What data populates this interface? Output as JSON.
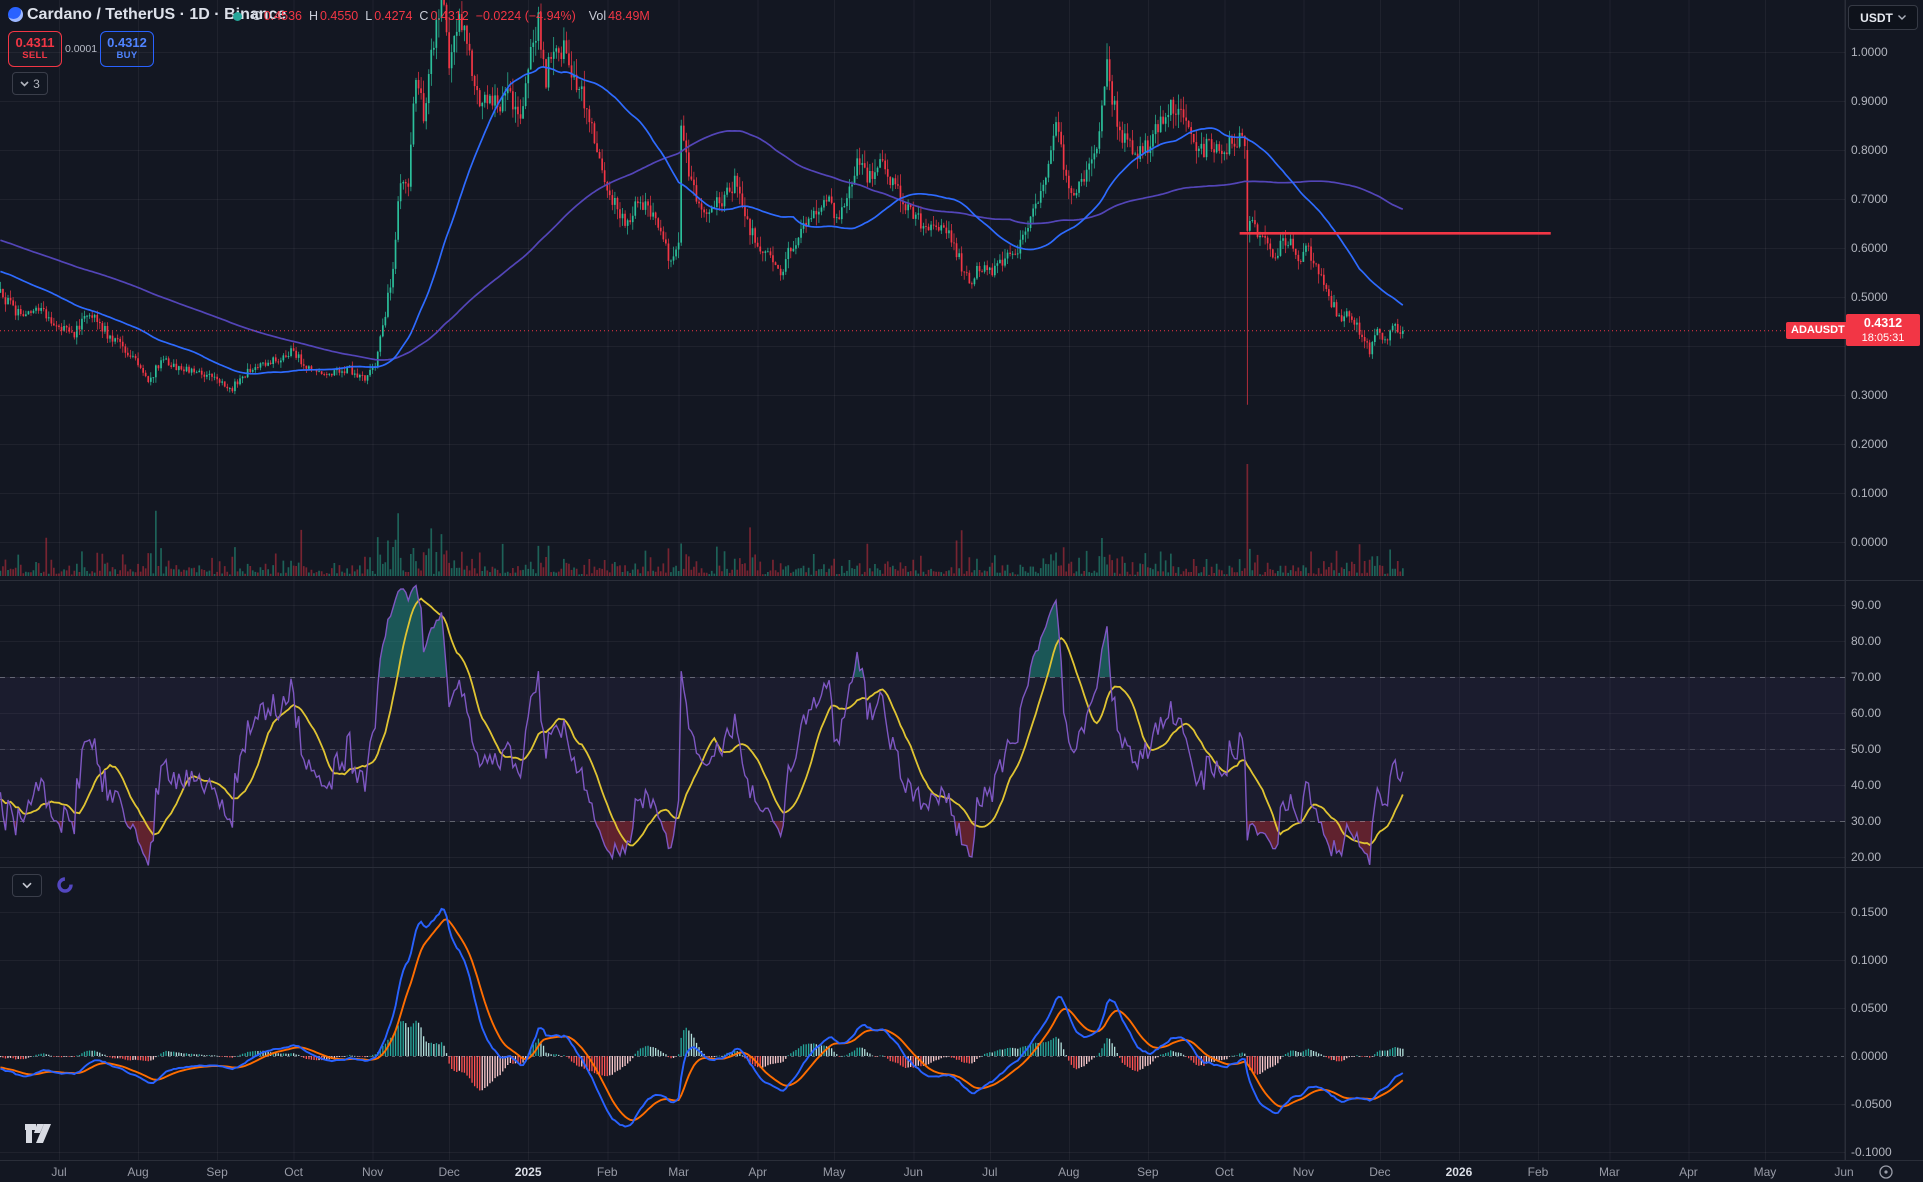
{
  "header": {
    "title": "Cardano / TetherUS · 1D · Binance",
    "status_dot": "market-status-dot",
    "ohlc": [
      {
        "k": "O",
        "v": "0.4536",
        "name": "open"
      },
      {
        "k": "H",
        "v": "0.4550",
        "name": "high"
      },
      {
        "k": "L",
        "v": "0.4274",
        "name": "low"
      },
      {
        "k": "C",
        "v": "0.4312",
        "name": "close"
      }
    ],
    "change": "−0.0224 (−4.94%)",
    "vol_label": "Vol",
    "vol_value": "48.49M"
  },
  "trade_panel": {
    "sell_price": "0.4311",
    "sell_label": "SELL",
    "spread": "0.0001",
    "buy_price": "0.4312",
    "buy_label": "BUY"
  },
  "object_tree_toggle": {
    "count": "3",
    "icon": "chevron-down-icon"
  },
  "macd_pane": {
    "collapse_icon": "chevron-down-icon",
    "loader_icon": "indicator-loader-icon"
  },
  "price_scale": {
    "currency_button": {
      "label": "USDT",
      "icon": "chevron-down-icon"
    },
    "ticks": [
      "1.0000",
      "0.9000",
      "0.8000",
      "0.7000",
      "0.6000",
      "0.5000",
      "0.3000",
      "0.2000",
      "0.1000",
      "0.0000"
    ],
    "last_price_tag": {
      "symbol": "ADAUSDT",
      "price": "0.4312",
      "countdown": "18:05:31"
    }
  },
  "rsi_scale_ticks": [
    "90.00",
    "80.00",
    "70.00",
    "60.00",
    "50.00",
    "40.00",
    "30.00",
    "20.00"
  ],
  "macd_scale_ticks": [
    "0.1500",
    "0.1000",
    "0.0500",
    "0.0000",
    "-0.0500",
    "-0.1000"
  ],
  "time_scale": {
    "labels": [
      "Jul",
      "Aug",
      "Sep",
      "Oct",
      "Nov",
      "Dec",
      "2025",
      "Feb",
      "Mar",
      "Apr",
      "May",
      "Jun",
      "Jul",
      "Aug",
      "Sep",
      "Oct",
      "Nov",
      "Dec",
      "2026",
      "Feb",
      "Mar",
      "Apr",
      "May",
      "Jun"
    ],
    "major_flags": [
      0,
      0,
      0,
      0,
      0,
      0,
      1,
      0,
      0,
      0,
      0,
      0,
      0,
      0,
      0,
      0,
      0,
      0,
      1,
      0,
      0,
      0,
      0,
      0
    ],
    "settings_icon": "timezone-settings-icon"
  },
  "watermark_logo": "tradingview-logo",
  "colors": {
    "bg": "#131722",
    "grid": "rgba(255,255,255,0.05)",
    "text": "#b2b5be",
    "text_bright": "#dbdee6",
    "up": "#2bbf9b",
    "down": "#f23645",
    "vol_up": "rgba(43,191,155,0.45)",
    "vol_down": "rgba(242,54,69,0.45)",
    "sma_fast": "#2e6bff",
    "sma_slow": "#5345b8",
    "rsi_line": "#7e57c2",
    "rsi_ma": "#e0c432",
    "rsi_band": "rgba(126,87,194,0.08)",
    "rsi_ob_fill": "rgba(38,166,154,0.45)",
    "rsi_os_fill": "rgba(242,54,69,0.35)",
    "macd_line": "#2962ff",
    "signal_line": "#ff6d00",
    "hist_up": "#26a69a",
    "hist_up_fade": "#b2dfdb",
    "hist_down": "#ff5252",
    "hist_down_fade": "#fccbcd",
    "separator": "#2a2e39",
    "dashed_level": "rgba(178,181,190,0.45)",
    "buy_accent": "#2962ff",
    "sell_accent": "#f23645"
  },
  "chart_data": {
    "type": "candlestick",
    "symbol": "ADAUSDT",
    "timeframe": "1D",
    "exchange": "Binance",
    "price_axis": {
      "visible_min": 0.0,
      "visible_max": 1.106,
      "tick_step": 0.1
    },
    "time_axis": {
      "first_month_label": "Jul",
      "first_month_year": 2024,
      "months_visible": 24
    },
    "last_close": 0.4312,
    "price_keypoints": [
      [
        -160,
        0.74
      ],
      [
        -130,
        0.68
      ],
      [
        -100,
        0.63
      ],
      [
        -70,
        0.585
      ],
      [
        -45,
        0.555
      ],
      [
        -30,
        0.53
      ],
      [
        -23,
        0.505
      ],
      [
        -16,
        0.465
      ],
      [
        -8,
        0.475
      ],
      [
        0,
        0.44
      ],
      [
        6,
        0.425
      ],
      [
        12,
        0.465
      ],
      [
        20,
        0.42
      ],
      [
        28,
        0.385
      ],
      [
        35,
        0.325
      ],
      [
        40,
        0.37
      ],
      [
        48,
        0.355
      ],
      [
        56,
        0.345
      ],
      [
        62,
        0.33
      ],
      [
        68,
        0.315
      ],
      [
        75,
        0.355
      ],
      [
        84,
        0.37
      ],
      [
        92,
        0.39
      ],
      [
        98,
        0.35
      ],
      [
        106,
        0.34
      ],
      [
        113,
        0.355
      ],
      [
        120,
        0.335
      ],
      [
        124,
        0.36
      ],
      [
        128,
        0.47
      ],
      [
        131,
        0.56
      ],
      [
        134,
        0.74
      ],
      [
        137,
        0.72
      ],
      [
        140,
        0.95
      ],
      [
        143,
        0.88
      ],
      [
        147,
        1.02
      ],
      [
        150,
        1.12
      ],
      [
        153,
        0.99
      ],
      [
        157,
        1.09
      ],
      [
        161,
        1.0
      ],
      [
        165,
        0.89
      ],
      [
        169,
        0.92
      ],
      [
        173,
        0.88
      ],
      [
        177,
        0.92
      ],
      [
        181,
        0.86
      ],
      [
        185,
        0.99
      ],
      [
        188,
        1.06
      ],
      [
        191,
        0.95
      ],
      [
        195,
        1.03
      ],
      [
        199,
        0.99
      ],
      [
        203,
        0.94
      ],
      [
        208,
        0.86
      ],
      [
        212,
        0.77
      ],
      [
        217,
        0.7
      ],
      [
        222,
        0.645
      ],
      [
        227,
        0.7
      ],
      [
        232,
        0.67
      ],
      [
        236,
        0.63
      ],
      [
        240,
        0.565
      ],
      [
        243,
        0.6
      ],
      [
        244,
        0.85
      ],
      [
        247,
        0.74
      ],
      [
        251,
        0.695
      ],
      [
        256,
        0.675
      ],
      [
        260,
        0.7
      ],
      [
        265,
        0.73
      ],
      [
        269,
        0.66
      ],
      [
        274,
        0.615
      ],
      [
        279,
        0.575
      ],
      [
        283,
        0.545
      ],
      [
        287,
        0.6
      ],
      [
        292,
        0.645
      ],
      [
        297,
        0.68
      ],
      [
        302,
        0.7
      ],
      [
        306,
        0.655
      ],
      [
        310,
        0.72
      ],
      [
        313,
        0.785
      ],
      [
        317,
        0.745
      ],
      [
        321,
        0.77
      ],
      [
        326,
        0.745
      ],
      [
        331,
        0.7
      ],
      [
        336,
        0.665
      ],
      [
        341,
        0.635
      ],
      [
        346,
        0.655
      ],
      [
        350,
        0.61
      ],
      [
        354,
        0.565
      ],
      [
        357,
        0.525
      ],
      [
        361,
        0.56
      ],
      [
        366,
        0.55
      ],
      [
        371,
        0.575
      ],
      [
        376,
        0.59
      ],
      [
        381,
        0.65
      ],
      [
        385,
        0.71
      ],
      [
        389,
        0.8
      ],
      [
        391,
        0.86
      ],
      [
        394,
        0.76
      ],
      [
        398,
        0.71
      ],
      [
        402,
        0.73
      ],
      [
        406,
        0.79
      ],
      [
        409,
        0.88
      ],
      [
        411,
        0.97
      ],
      [
        414,
        0.88
      ],
      [
        417,
        0.835
      ],
      [
        421,
        0.81
      ],
      [
        425,
        0.79
      ],
      [
        429,
        0.83
      ],
      [
        433,
        0.87
      ],
      [
        436,
        0.905
      ],
      [
        439,
        0.875
      ],
      [
        443,
        0.83
      ],
      [
        447,
        0.795
      ],
      [
        451,
        0.815
      ],
      [
        455,
        0.795
      ],
      [
        459,
        0.81
      ],
      [
        463,
        0.825
      ],
      [
        465,
        0.8
      ],
      [
        466,
        0.635
      ],
      [
        468,
        0.655
      ],
      [
        471,
        0.625
      ],
      [
        474,
        0.6
      ],
      [
        477,
        0.585
      ],
      [
        480,
        0.62
      ],
      [
        484,
        0.6
      ],
      [
        487,
        0.575
      ],
      [
        490,
        0.6
      ],
      [
        493,
        0.565
      ],
      [
        496,
        0.525
      ],
      [
        499,
        0.49
      ],
      [
        502,
        0.455
      ],
      [
        505,
        0.475
      ],
      [
        508,
        0.45
      ],
      [
        511,
        0.415
      ],
      [
        514,
        0.39
      ],
      [
        517,
        0.425
      ],
      [
        520,
        0.405
      ],
      [
        523,
        0.445
      ],
      [
        525,
        0.425
      ],
      [
        527,
        0.4312
      ]
    ],
    "special_candles": [
      {
        "day": 466,
        "o": 0.8,
        "h": 0.825,
        "l": 0.28,
        "c": 0.635,
        "note": "crash candle with long lower wick"
      }
    ],
    "drawings": {
      "horizontal_ray": {
        "price": 0.63,
        "from_day": 463,
        "to_day": 585
      }
    },
    "indicators": {
      "sma_fast_period": 45,
      "sma_slow_period": 130,
      "rsi": {
        "period": 14,
        "ma_period": 14,
        "overbought": 70,
        "middle": 50,
        "oversold": 30
      },
      "macd": {
        "fast": 12,
        "slow": 26,
        "signal": 9
      }
    }
  }
}
